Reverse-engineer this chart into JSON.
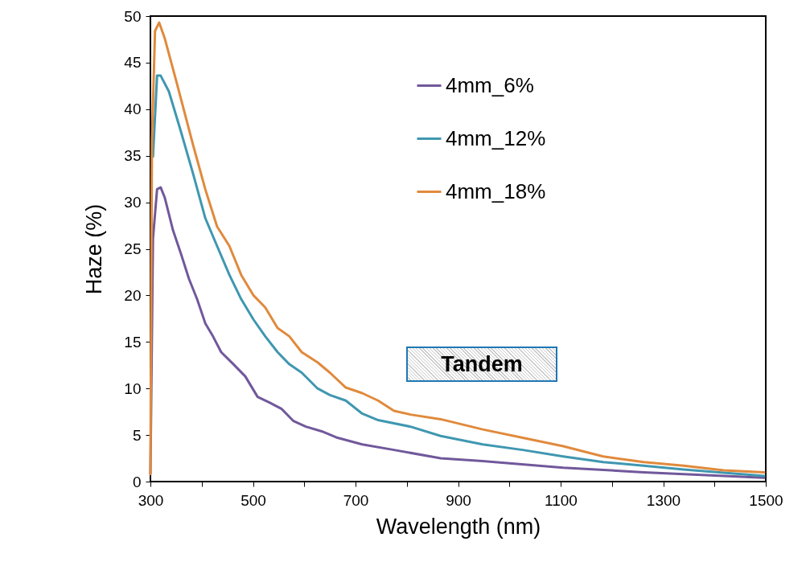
{
  "chart_data": {
    "type": "line",
    "xlabel": "Wavelength (nm)",
    "ylabel": "Haze (%)",
    "xlim": [
      300,
      1500
    ],
    "ylim": [
      0,
      50
    ],
    "xticks": [
      300,
      {
        "value": 400,
        "label": null
      },
      500,
      {
        "value": 600,
        "label": null
      },
      700,
      {
        "value": 800,
        "label": null
      },
      900,
      {
        "value": 1000,
        "label": null
      },
      1100,
      {
        "value": 1200,
        "label": null
      },
      1300,
      {
        "value": 1400,
        "label": null
      },
      1500
    ],
    "yticks": [
      0,
      5,
      10,
      15,
      20,
      25,
      30,
      35,
      40,
      45,
      50
    ],
    "grid": false,
    "legend": "top",
    "marker": "none",
    "line_style": "solid",
    "annotations": [
      "Tandem"
    ],
    "series": [
      {
        "name": "4mm_6%",
        "color": "#71589b",
        "x": [
          300,
          305,
          313,
          320,
          328,
          344,
          360,
          375,
          391,
          407,
          422,
          438,
          462,
          485,
          509,
          532,
          556,
          579,
          603,
          634,
          665,
          713,
          775,
          866,
          948,
          1105,
          1262,
          1497
        ],
        "values": [
          0.8,
          26.1,
          31.4,
          31.6,
          30.5,
          27,
          24.4,
          21.8,
          19.6,
          17,
          15.6,
          13.9,
          12.6,
          11.3,
          9.1,
          8.5,
          7.8,
          6.5,
          5.9,
          5.4,
          4.7,
          4.0,
          3.4,
          2.5,
          2.2,
          1.5,
          1.0,
          0.4
        ]
      },
      {
        "name": "4mm_12%",
        "color": "#3f97b0",
        "x": [
          305,
          313,
          320,
          336,
          360,
          383,
          407,
          430,
          454,
          477,
          501,
          524,
          548,
          571,
          595,
          626,
          650,
          681,
          713,
          744,
          807,
          866,
          948,
          1026,
          1105,
          1183,
          1262,
          1340,
          1497
        ],
        "values": [
          34.9,
          43.6,
          43.6,
          41.9,
          37.5,
          33.1,
          28.3,
          25.3,
          22.2,
          19.6,
          17.4,
          15.6,
          13.9,
          12.6,
          11.7,
          10,
          9.3,
          8.7,
          7.3,
          6.6,
          5.9,
          4.9,
          4.0,
          3.4,
          2.7,
          2.1,
          1.7,
          1.3,
          0.6
        ]
      },
      {
        "name": "4mm_18%",
        "color": "#e08a3c",
        "x": [
          300,
          303,
          309,
          317,
          328,
          352,
          383,
          407,
          430,
          454,
          477,
          501,
          524,
          548,
          571,
          595,
          626,
          650,
          681,
          713,
          744,
          775,
          807,
          866,
          948,
          1026,
          1105,
          1183,
          1262,
          1340,
          1418,
          1497
        ],
        "values": [
          0.8,
          36.6,
          48.4,
          49.3,
          47.6,
          42.7,
          36.2,
          31.4,
          27.4,
          25.3,
          22.2,
          20,
          18.7,
          16.5,
          15.6,
          13.9,
          12.8,
          11.7,
          10.1,
          9.5,
          8.7,
          7.6,
          7.2,
          6.7,
          5.6,
          4.7,
          3.8,
          2.7,
          2.1,
          1.7,
          1.2,
          1.0
        ]
      }
    ]
  }
}
